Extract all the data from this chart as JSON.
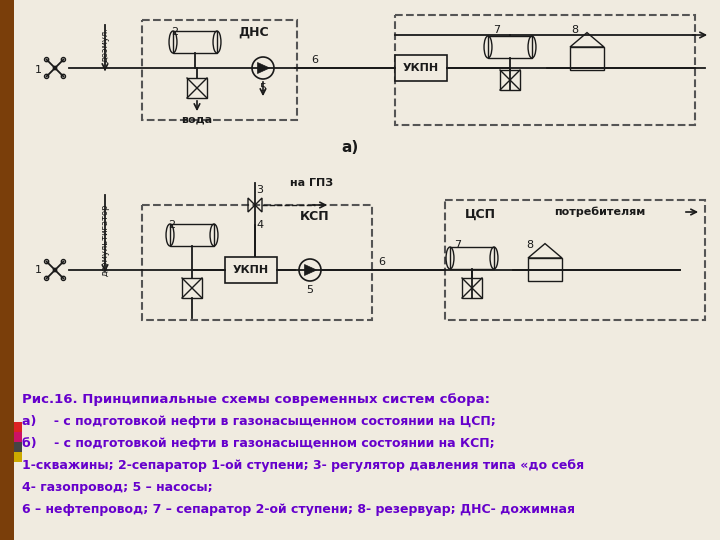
{
  "bg_color": "#f0ebe0",
  "sidebar_color": "#7a3e0a",
  "sidebar_colors": [
    "#dd2222",
    "#cc1166",
    "#444444",
    "#ccaa00"
  ],
  "caption_color": "#6600cc",
  "lc": "#1a1a1a",
  "dc": "#555555",
  "caption_lines": [
    "Рис.16. Принципиальные схемы современных систем сбора:",
    "а)    - с подготовкой нефти в газонасыщенном состоянии на ЦСП;",
    "б)    - с подготовкой нефти в газонасыщенном состоянии на КСП;",
    "1-скважины; 2-сепаратор 1-ой ступени; 3- регулятор давления типа «до себя",
    "4- газопровод; 5 – насосы;",
    "6 – нефтепровод; 7 – сепаратор 2-ой ступени; 8- резервуар; ДНС- дожимная"
  ]
}
